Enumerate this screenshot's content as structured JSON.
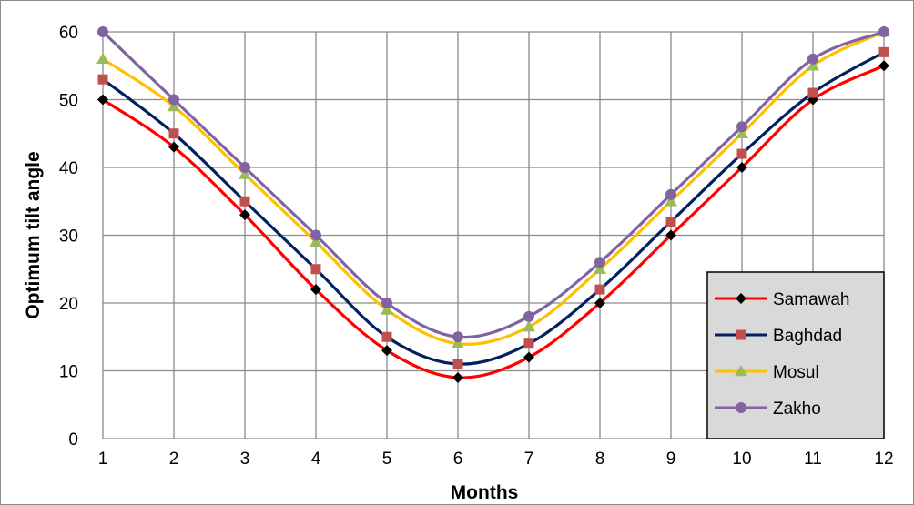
{
  "chart_data": {
    "type": "line",
    "title": "",
    "xlabel": "Months",
    "ylabel": "Optimum tilt angle",
    "x": [
      1,
      2,
      3,
      4,
      5,
      6,
      7,
      8,
      9,
      10,
      11,
      12
    ],
    "xlim": [
      1,
      12
    ],
    "ylim": [
      0,
      60
    ],
    "yticks": [
      0,
      10,
      20,
      30,
      40,
      50,
      60
    ],
    "grid": true,
    "smooth": true,
    "legend_position": "bottom-right",
    "series": [
      {
        "name": "Samawah",
        "color": "#ff0000",
        "marker": "diamond",
        "marker_color": "#000000",
        "values": [
          50,
          43,
          33,
          22,
          13,
          9,
          12,
          20,
          30,
          40,
          50,
          55
        ]
      },
      {
        "name": "Baghdad",
        "color": "#002060",
        "marker": "square",
        "marker_color": "#c0504d",
        "values": [
          53,
          45,
          35,
          25,
          15,
          11,
          14,
          22,
          32,
          42,
          51,
          57
        ]
      },
      {
        "name": "Mosul",
        "color": "#ffc000",
        "marker": "triangle",
        "marker_color": "#9bbb59",
        "values": [
          56,
          49,
          39,
          29,
          19,
          14,
          16.5,
          25,
          35,
          45,
          55,
          60
        ]
      },
      {
        "name": "Zakho",
        "color": "#8064a2",
        "marker": "circle",
        "marker_color": "#8064a2",
        "values": [
          60,
          50,
          40,
          30,
          20,
          15,
          18,
          26,
          36,
          46,
          56,
          60
        ]
      }
    ]
  }
}
